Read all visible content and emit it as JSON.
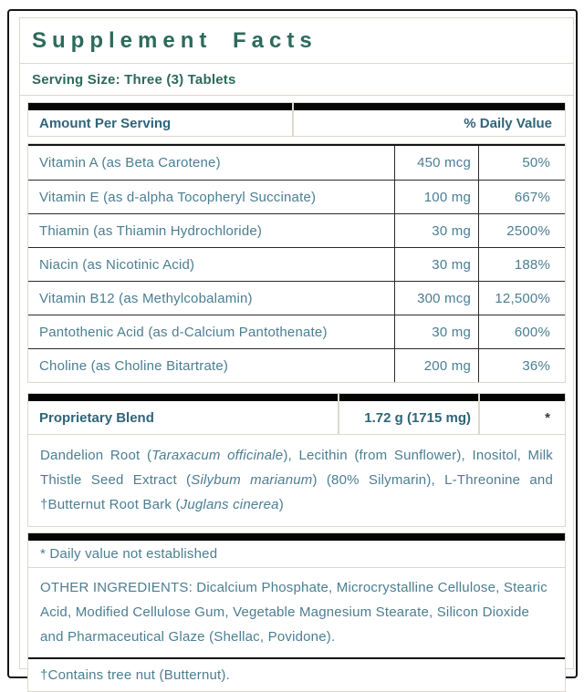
{
  "label": {
    "title": "Supplement Facts",
    "serving_size": "Serving Size: Three (3) Tablets",
    "columns": {
      "amount_header": "Amount Per Serving",
      "dv_header": "% Daily Value"
    },
    "nutrients": [
      {
        "name": "Vitamin A (as Beta Carotene)",
        "amount": "450 mcg",
        "dv": "50%"
      },
      {
        "name": "Vitamin E (as d-alpha Tocopheryl Succinate)",
        "amount": "100 mg",
        "dv": "667%"
      },
      {
        "name": "Thiamin (as Thiamin Hydrochloride)",
        "amount": "30 mg",
        "dv": "2500%"
      },
      {
        "name": "Niacin (as Nicotinic Acid)",
        "amount": "30 mg",
        "dv": "188%"
      },
      {
        "name": "Vitamin B12 (as Methylcobalamin)",
        "amount": "300 mcg",
        "dv": "12,500%"
      },
      {
        "name": "Pantothenic Acid (as  d-Calcium Pantothenate)",
        "amount": "30 mg",
        "dv": "600%"
      },
      {
        "name": "Choline (as Choline Bitartrate)",
        "amount": "200 mg",
        "dv": "36%"
      }
    ],
    "proprietary": {
      "name": "Proprietary Blend",
      "amount": "1.72 g (1715 mg)",
      "dv": "*",
      "description_parts": [
        {
          "text": "Dandelion Root (",
          "italic": false
        },
        {
          "text": "Taraxacum officinale",
          "italic": true
        },
        {
          "text": "), Lecithin (from Sunflower), Inositol, Milk Thistle Seed Extract (",
          "italic": false
        },
        {
          "text": "Silybum marianum",
          "italic": true
        },
        {
          "text": ") (80% Silymarin), L-Threonine and †Butternut Root Bark (",
          "italic": false
        },
        {
          "text": "Juglans cinerea",
          "italic": true
        },
        {
          "text": ")",
          "italic": false
        }
      ]
    },
    "footnotes": {
      "dv_note": "* Daily value not established",
      "other_ingredients": "OTHER INGREDIENTS: Dicalcium Phosphate, Microcrystalline Cellulose, Stearic Acid, Modified Cellulose Gum, Vegetable Magnesium Stearate, Silicon Dioxide and Pharmaceutical Glaze (Shellac, Povidone).",
      "allergen": "†Contains tree nut (Butternut)."
    },
    "colors": {
      "title_green": "#2d6a5b",
      "header_teal": "#306479",
      "body_blue": "#4b7e92",
      "bar_black": "#050505",
      "rule_dark": "#2b2b2b",
      "border_light": "#dcd8cc",
      "outer_border": "#161616"
    }
  }
}
